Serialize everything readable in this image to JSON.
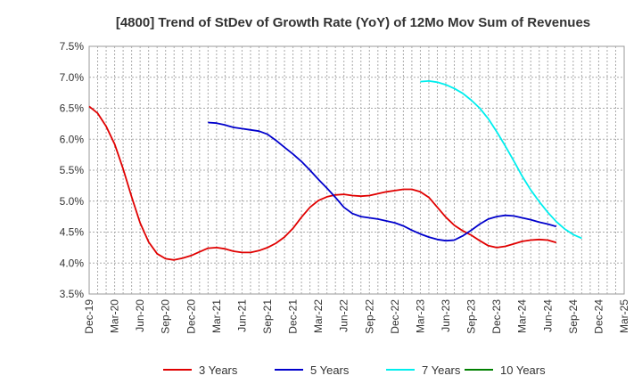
{
  "chart_data": {
    "type": "line",
    "title": "[4800]  Trend of StDev of Growth Rate (YoY) of 12Mo Mov Sum of Revenues",
    "xlabel": "",
    "ylabel": "",
    "ylim": [
      3.5,
      7.5
    ],
    "yticks": [
      "3.5%",
      "4.0%",
      "4.5%",
      "5.0%",
      "5.5%",
      "6.0%",
      "6.5%",
      "7.0%",
      "7.5%"
    ],
    "x_start": "Dec-19",
    "x_end": "Mar-25",
    "months_total": 63,
    "xtick_labels": [
      "Dec-19",
      "Mar-20",
      "Jun-20",
      "Sep-20",
      "Dec-20",
      "Mar-21",
      "Jun-21",
      "Sep-21",
      "Dec-21",
      "Mar-22",
      "Jun-22",
      "Sep-22",
      "Dec-22",
      "Mar-23",
      "Jun-23",
      "Sep-23",
      "Dec-23",
      "Mar-24",
      "Jun-24",
      "Sep-24",
      "Dec-24",
      "Mar-25"
    ],
    "series": [
      {
        "name": "3 Years",
        "color": "#e00000",
        "start_month": 0,
        "values": [
          6.53,
          6.42,
          6.21,
          5.92,
          5.52,
          5.07,
          4.65,
          4.34,
          4.15,
          4.07,
          4.05,
          4.08,
          4.12,
          4.18,
          4.24,
          4.25,
          4.23,
          4.19,
          4.17,
          4.17,
          4.2,
          4.25,
          4.32,
          4.42,
          4.56,
          4.74,
          4.9,
          5.01,
          5.07,
          5.1,
          5.11,
          5.09,
          5.08,
          5.09,
          5.12,
          5.15,
          5.17,
          5.19,
          5.19,
          5.15,
          5.06,
          4.9,
          4.74,
          4.61,
          4.52,
          4.45,
          4.36,
          4.28,
          4.25,
          4.27,
          4.31,
          4.35,
          4.37,
          4.38,
          4.37,
          4.33
        ]
      },
      {
        "name": "5 Years",
        "color": "#0000cc",
        "start_month": 14,
        "values": [
          6.27,
          6.26,
          6.23,
          6.19,
          6.17,
          6.15,
          6.13,
          6.08,
          5.98,
          5.87,
          5.76,
          5.64,
          5.5,
          5.35,
          5.21,
          5.06,
          4.9,
          4.8,
          4.75,
          4.73,
          4.71,
          4.68,
          4.65,
          4.6,
          4.53,
          4.47,
          4.42,
          4.38,
          4.36,
          4.37,
          4.44,
          4.53,
          4.63,
          4.71,
          4.75,
          4.77,
          4.76,
          4.73,
          4.7,
          4.66,
          4.63,
          4.59
        ]
      },
      {
        "name": "7 Years",
        "color": "#00eeee",
        "start_month": 39,
        "values": [
          6.93,
          6.94,
          6.92,
          6.88,
          6.82,
          6.74,
          6.63,
          6.5,
          6.33,
          6.12,
          5.89,
          5.65,
          5.4,
          5.18,
          4.99,
          4.82,
          4.67,
          4.55,
          4.46,
          4.4
        ]
      },
      {
        "name": "10 Years",
        "color": "#008000",
        "start_month": 0,
        "values": []
      }
    ],
    "grid": true,
    "legend_position": "bottom"
  }
}
